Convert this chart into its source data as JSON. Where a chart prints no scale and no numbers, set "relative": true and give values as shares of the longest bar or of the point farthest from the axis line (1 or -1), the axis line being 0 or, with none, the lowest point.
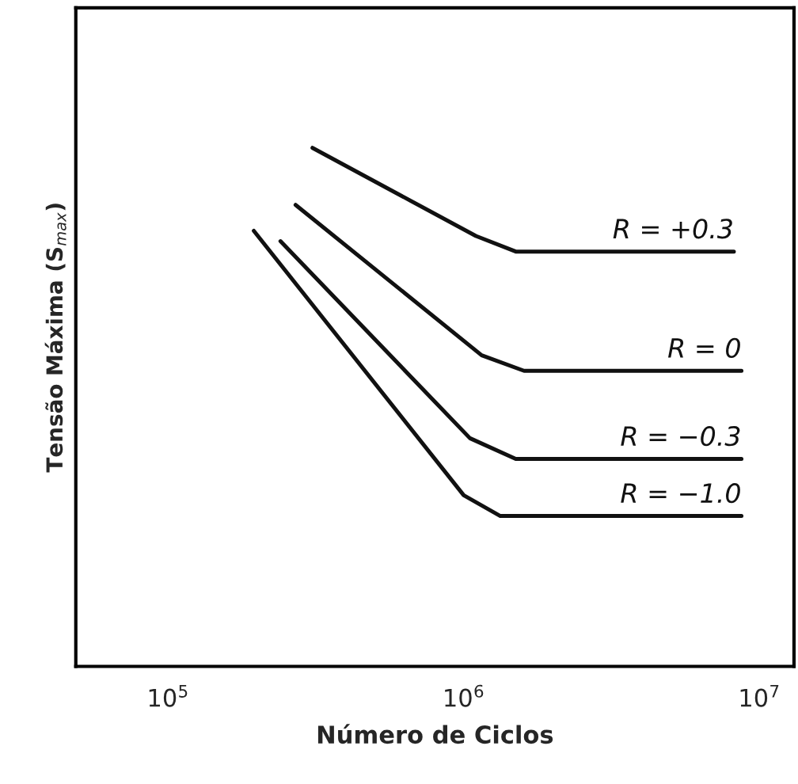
{
  "chart_data": {
    "type": "line",
    "relative": true,
    "xlabel": "Número de Ciclos",
    "ylabel": "Tensão Máxima (S$_{max}$)",
    "log": "x",
    "xlim": [
      48750,
      13100000
    ],
    "xticks": [
      {
        "value": 100000,
        "label": "10$^{5}$"
      },
      {
        "value": 1000000,
        "label": "10$^{6}$"
      },
      {
        "value": 10000000,
        "label": "10$^{7}$"
      }
    ],
    "grid": false,
    "legend": false,
    "marker": "none",
    "line_style": "solid",
    "series": [
      {
        "name": "R = +0.3",
        "color": "#111111",
        "x": [
          308000,
          1100000,
          1500000,
          8200000
        ],
        "values": [
          1.0,
          0.83,
          0.8,
          0.8
        ]
      },
      {
        "name": "R = 0",
        "color": "#111111",
        "x": [
          270000,
          1150000,
          1600000,
          8700000
        ],
        "values": [
          0.89,
          0.6,
          0.57,
          0.57
        ]
      },
      {
        "name": "R = −0.3",
        "color": "#111111",
        "x": [
          240000,
          1050000,
          1500000,
          8700000
        ],
        "values": [
          0.82,
          0.44,
          0.4,
          0.4
        ]
      },
      {
        "name": "R = −1.0",
        "color": "#111111",
        "x": [
          195000,
          1000000,
          1330000,
          8700000
        ],
        "values": [
          0.84,
          0.33,
          0.29,
          0.29
        ]
      }
    ]
  }
}
